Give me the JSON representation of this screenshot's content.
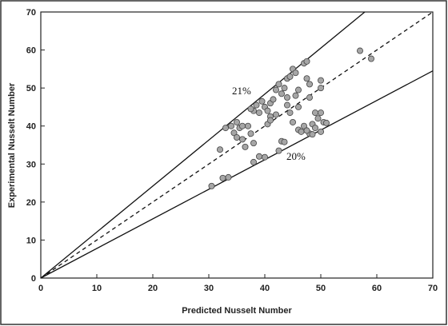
{
  "chart_data": {
    "type": "scatter",
    "x_label": "Predicted Nusselt Number",
    "y_label": "Experimental Nusselt Number",
    "xlim": [
      0,
      70
    ],
    "ylim": [
      0,
      70
    ],
    "xticks": [
      0,
      10,
      20,
      30,
      40,
      50,
      60,
      70
    ],
    "yticks": [
      0,
      10,
      20,
      30,
      40,
      50,
      60,
      70
    ],
    "grid": false,
    "points": {
      "color": "#a6a6a6",
      "x": [
        30.5,
        32.5,
        33.5,
        32,
        33,
        34,
        34.5,
        35,
        35.5,
        35,
        36,
        36.5,
        37,
        37.5,
        38,
        38,
        39,
        40,
        38,
        38.5,
        39,
        39.5,
        40,
        40.5,
        41,
        41,
        41.5,
        42,
        42,
        42.5,
        43,
        43.5,
        44,
        44,
        42.5,
        43,
        43.5,
        44,
        44.5,
        45,
        45.5,
        45,
        45.5,
        46,
        46,
        46,
        46.5,
        47,
        47,
        47.5,
        47.5,
        48,
        48,
        48,
        48.5,
        49,
        49,
        49.5,
        50,
        50,
        50,
        50.5,
        50,
        51,
        57,
        59,
        36,
        40.5,
        41,
        37.5,
        44.5,
        47.5,
        48.5
      ],
      "values": [
        24.2,
        26.3,
        26.5,
        33.8,
        39.5,
        40,
        38.2,
        41,
        39.5,
        37,
        36.5,
        34.5,
        40,
        38,
        35.5,
        30.5,
        32,
        31.8,
        44,
        45.5,
        43.5,
        46.5,
        45,
        44,
        42.5,
        46,
        47,
        43,
        49.5,
        51,
        48.5,
        50,
        45.5,
        47.5,
        33.5,
        36,
        35.8,
        52.5,
        53,
        55,
        54,
        41,
        48,
        49.5,
        45,
        39,
        38.5,
        40,
        56.5,
        57,
        52.5,
        51,
        47.5,
        38,
        40.5,
        39.5,
        43.5,
        42,
        52,
        50,
        43.5,
        41,
        38.5,
        40.8,
        59.8,
        57.7,
        40,
        40.5,
        41.5,
        44.5,
        43.5,
        38.8,
        37.8
      ]
    },
    "lines": [
      {
        "style": "solid",
        "x": [
          0,
          57.85
        ],
        "values": [
          0,
          70
        ]
      },
      {
        "style": "dashed",
        "x": [
          0,
          70
        ],
        "values": [
          0,
          70
        ]
      },
      {
        "style": "solid",
        "x": [
          0,
          70
        ],
        "values": [
          0,
          54.5
        ]
      }
    ],
    "annotations": [
      "21%",
      "20%"
    ]
  }
}
